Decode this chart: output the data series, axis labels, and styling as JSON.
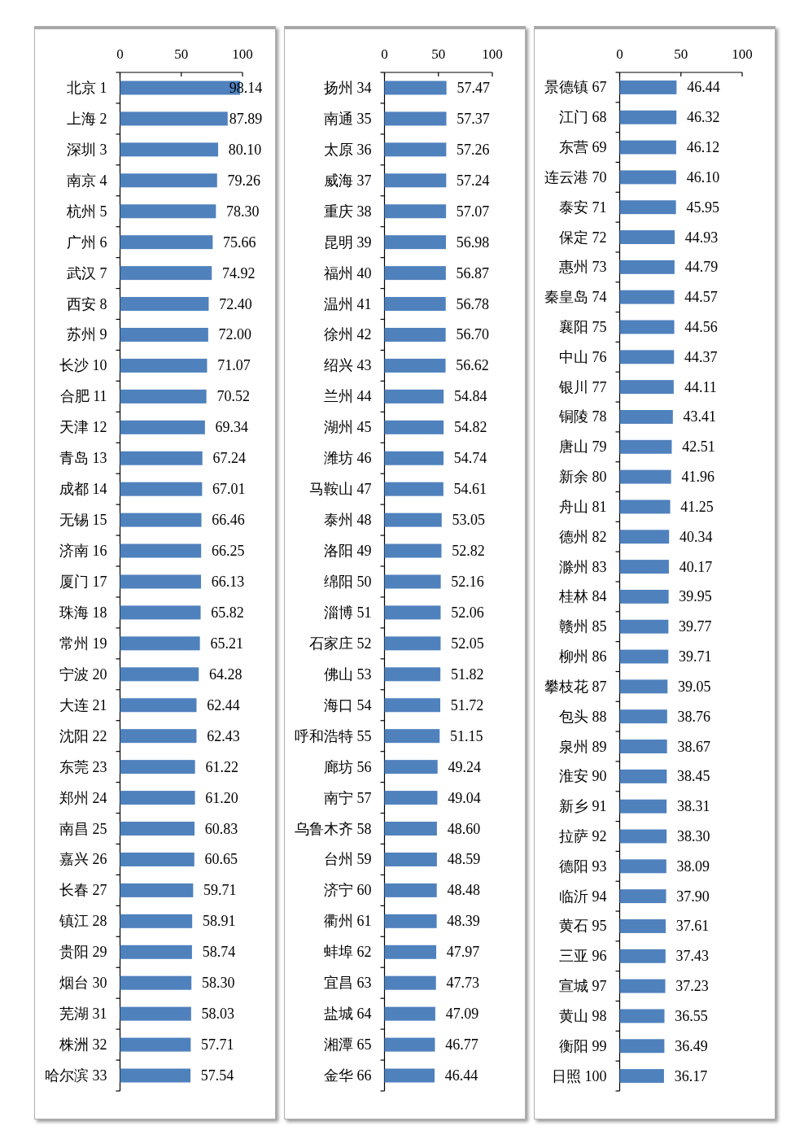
{
  "chart_data": [
    {
      "type": "bar",
      "orientation": "horizontal",
      "color": "#4f81bd",
      "xlim": [
        0,
        100
      ],
      "xticks": [
        0,
        50,
        100
      ],
      "categories": [
        "北京 1",
        "上海 2",
        "深圳 3",
        "南京 4",
        "杭州 5",
        "广州 6",
        "武汉 7",
        "西安 8",
        "苏州 9",
        "长沙 10",
        "合肥 11",
        "天津 12",
        "青岛 13",
        "成都 14",
        "无锡 15",
        "济南 16",
        "厦门 17",
        "珠海 18",
        "常州 19",
        "宁波 20",
        "大连 21",
        "沈阳 22",
        "东莞 23",
        "郑州 24",
        "南昌 25",
        "嘉兴 26",
        "长春 27",
        "镇江 28",
        "贵阳 29",
        "烟台 30",
        "芜湖 31",
        "株洲 32",
        "哈尔滨 33"
      ],
      "values": [
        98.14,
        87.89,
        80.1,
        79.26,
        78.3,
        75.66,
        74.92,
        72.4,
        72.0,
        71.07,
        70.52,
        69.34,
        67.24,
        67.01,
        66.46,
        66.25,
        66.13,
        65.82,
        65.21,
        64.28,
        62.44,
        62.43,
        61.22,
        61.2,
        60.83,
        60.65,
        59.71,
        58.91,
        58.74,
        58.3,
        58.03,
        57.71,
        57.54
      ],
      "value_labels": [
        "98.14",
        "87.89",
        "80.10",
        "79.26",
        "78.30",
        "75.66",
        "74.92",
        "72.40",
        "72.00",
        "71.07",
        "70.52",
        "69.34",
        "67.24",
        "67.01",
        "66.46",
        "66.25",
        "66.13",
        "65.82",
        "65.21",
        "64.28",
        "62.44",
        "62.43",
        "61.22",
        "61.20",
        "60.83",
        "60.65",
        "59.71",
        "58.91",
        "58.74",
        "58.30",
        "58.03",
        "57.71",
        "57.54"
      ]
    },
    {
      "type": "bar",
      "orientation": "horizontal",
      "color": "#4f81bd",
      "xlim": [
        0,
        100
      ],
      "xticks": [
        0,
        50,
        100
      ],
      "categories": [
        "扬州 34",
        "南通 35",
        "太原 36",
        "威海 37",
        "重庆 38",
        "昆明 39",
        "福州 40",
        "温州 41",
        "徐州 42",
        "绍兴 43",
        "兰州 44",
        "湖州 45",
        "潍坊 46",
        "马鞍山 47",
        "泰州 48",
        "洛阳 49",
        "绵阳 50",
        "淄博 51",
        "石家庄 52",
        "佛山 53",
        "海口 54",
        "呼和浩特 55",
        "廊坊 56",
        "南宁 57",
        "乌鲁木齐 58",
        "台州 59",
        "济宁 60",
        "衢州 61",
        "蚌埠 62",
        "宜昌 63",
        "盐城 64",
        "湘潭 65",
        "金华 66"
      ],
      "values": [
        57.47,
        57.37,
        57.26,
        57.24,
        57.07,
        56.98,
        56.87,
        56.78,
        56.7,
        56.62,
        54.84,
        54.82,
        54.74,
        54.61,
        53.05,
        52.82,
        52.16,
        52.06,
        52.05,
        51.82,
        51.72,
        51.15,
        49.24,
        49.04,
        48.6,
        48.59,
        48.48,
        48.39,
        47.97,
        47.73,
        47.09,
        46.77,
        46.44
      ],
      "value_labels": [
        "57.47",
        "57.37",
        "57.26",
        "57.24",
        "57.07",
        "56.98",
        "56.87",
        "56.78",
        "56.70",
        "56.62",
        "54.84",
        "54.82",
        "54.74",
        "54.61",
        "53.05",
        "52.82",
        "52.16",
        "52.06",
        "52.05",
        "51.82",
        "51.72",
        "51.15",
        "49.24",
        "49.04",
        "48.60",
        "48.59",
        "48.48",
        "48.39",
        "47.97",
        "47.73",
        "47.09",
        "46.77",
        "46.44"
      ]
    },
    {
      "type": "bar",
      "orientation": "horizontal",
      "color": "#4f81bd",
      "xlim": [
        0,
        100
      ],
      "xticks": [
        0,
        50,
        100
      ],
      "categories": [
        "景德镇 67",
        "江门 68",
        "东营 69",
        "连云港 70",
        "泰安 71",
        "保定 72",
        "惠州 73",
        "秦皇岛 74",
        "襄阳 75",
        "中山 76",
        "银川 77",
        "铜陵 78",
        "唐山 79",
        "新余 80",
        "舟山 81",
        "德州 82",
        "滁州 83",
        "桂林 84",
        "赣州 85",
        "柳州 86",
        "攀枝花 87",
        "包头 88",
        "泉州 89",
        "淮安 90",
        "新乡 91",
        "拉萨 92",
        "德阳 93",
        "临沂 94",
        "黄石 95",
        "三亚 96",
        "宣城 97",
        "黄山 98",
        "衡阳 99",
        "日照 100"
      ],
      "values": [
        46.44,
        46.32,
        46.12,
        46.1,
        45.95,
        44.93,
        44.79,
        44.57,
        44.56,
        44.37,
        44.11,
        43.41,
        42.51,
        41.96,
        41.25,
        40.34,
        40.17,
        39.95,
        39.77,
        39.71,
        39.05,
        38.76,
        38.67,
        38.45,
        38.31,
        38.3,
        38.09,
        37.9,
        37.61,
        37.43,
        37.23,
        36.55,
        36.49,
        36.17
      ],
      "value_labels": [
        "46.44",
        "46.32",
        "46.12",
        "46.10",
        "45.95",
        "44.93",
        "44.79",
        "44.57",
        "44.56",
        "44.37",
        "44.11",
        "43.41",
        "42.51",
        "41.96",
        "41.25",
        "40.34",
        "40.17",
        "39.95",
        "39.77",
        "39.71",
        "39.05",
        "38.76",
        "38.67",
        "38.45",
        "38.31",
        "38.30",
        "38.09",
        "37.90",
        "37.61",
        "37.43",
        "37.23",
        "36.55",
        "36.49",
        "36.17"
      ]
    }
  ]
}
